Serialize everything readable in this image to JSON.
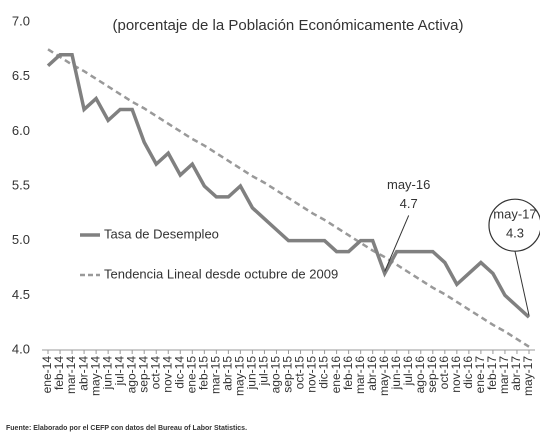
{
  "chart_data": {
    "type": "line",
    "title": "(porcentaje de la Población Económicamente Activa)",
    "source": "Fuente: Elaborado por el CEFP con datos del Bureau of Labor Statistics.",
    "categories": [
      "ene-14",
      "feb-14",
      "mar-14",
      "abr-14",
      "may-14",
      "jun-14",
      "jul-14",
      "ago-14",
      "sep-14",
      "oct-14",
      "nov-14",
      "dic-14",
      "ene-15",
      "feb-15",
      "mar-15",
      "abr-15",
      "may-15",
      "jun-15",
      "jul-15",
      "ago-15",
      "sep-15",
      "oct-15",
      "nov-15",
      "dic-15",
      "ene-16",
      "feb-16",
      "mar-16",
      "abr-16",
      "may-16",
      "jun-16",
      "jul-16",
      "ago-16",
      "sep-16",
      "oct-16",
      "nov-16",
      "dic-16",
      "ene-17",
      "feb-17",
      "mar-17",
      "abr-17",
      "may-17"
    ],
    "series": [
      {
        "name": "Tasa de Desempleo",
        "color": "#808080",
        "dashed": false,
        "values": [
          6.6,
          6.7,
          6.7,
          6.2,
          6.3,
          6.1,
          6.2,
          6.2,
          5.9,
          5.7,
          5.8,
          5.6,
          5.7,
          5.5,
          5.4,
          5.4,
          5.5,
          5.3,
          5.2,
          5.1,
          5.0,
          5.0,
          5.0,
          5.0,
          4.9,
          4.9,
          5.0,
          5.0,
          4.7,
          4.9,
          4.9,
          4.9,
          4.9,
          4.8,
          4.6,
          4.7,
          4.8,
          4.7,
          4.5,
          4.4,
          4.3
        ]
      },
      {
        "name": "Tendencia Lineal desde octubre de 2009",
        "color": "#999999",
        "dashed": true,
        "values": [
          6.75,
          6.68,
          6.61,
          6.55,
          6.48,
          6.41,
          6.34,
          6.27,
          6.21,
          6.14,
          6.07,
          6.0,
          5.93,
          5.87,
          5.8,
          5.73,
          5.66,
          5.59,
          5.53,
          5.46,
          5.39,
          5.32,
          5.25,
          5.19,
          5.12,
          5.05,
          4.98,
          4.91,
          4.85,
          4.78,
          4.71,
          4.64,
          4.57,
          4.51,
          4.44,
          4.37,
          4.3,
          4.23,
          4.17,
          4.1,
          4.03
        ]
      }
    ],
    "annotations": [
      {
        "category": "may-16",
        "value": 4.7,
        "circle": false
      },
      {
        "category": "may-17",
        "value": 4.3,
        "circle": true
      }
    ],
    "ylim": [
      4.0,
      7.0
    ],
    "yticks": [
      {
        "value": 4.0,
        "label": "4.0"
      },
      {
        "value": 4.5,
        "label": "4.5"
      },
      {
        "value": 5.0,
        "label": "5.0"
      },
      {
        "value": 5.5,
        "label": "5.5"
      },
      {
        "value": 6.0,
        "label": "6.0"
      },
      {
        "value": 6.5,
        "label": "6.5"
      },
      {
        "value": 7.0,
        "label": "7.0"
      }
    ],
    "grid": false
  }
}
